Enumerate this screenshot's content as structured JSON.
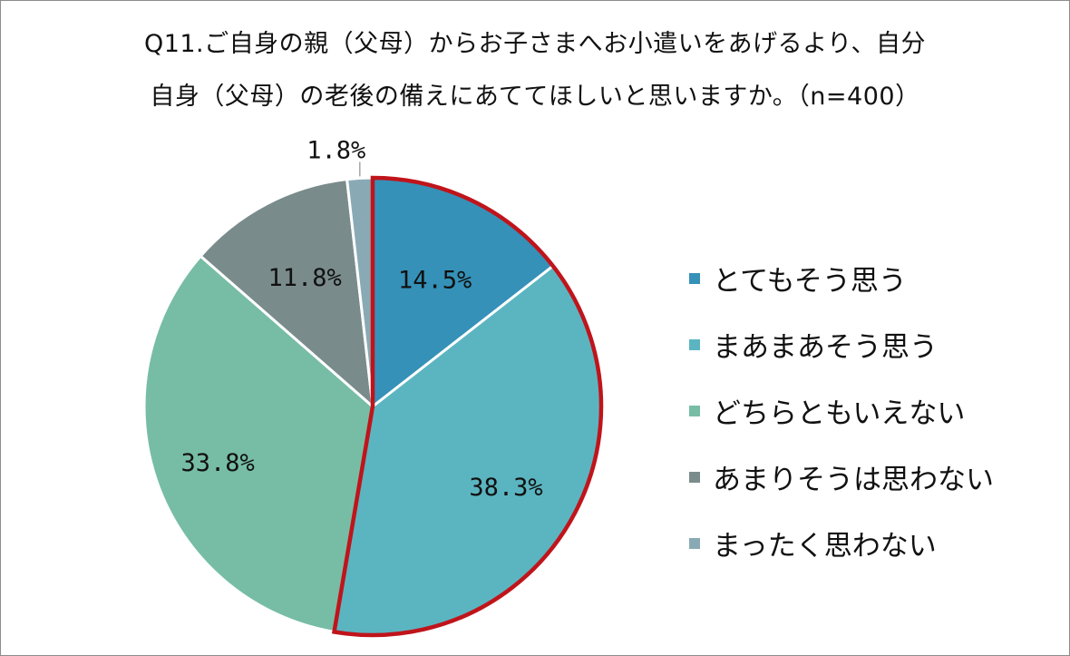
{
  "title_line1": "Q11.ご自身の親（父母）からお子さまへお小遣いをあげるより、自分",
  "title_line2": "自身（父母）の老後の備えにあててほしいと思いますか。（n=400）",
  "chart_data": {
    "type": "pie",
    "categories": [
      "とてもそう思う",
      "まあまあそう思う",
      "どちらともいえない",
      "あまりそうは思わない",
      "まったく思わない"
    ],
    "values": [
      14.5,
      38.3,
      33.8,
      11.8,
      1.8
    ],
    "data_labels": [
      "14.5%",
      "38.3%",
      "33.8%",
      "11.8%",
      "1.8%"
    ],
    "colors": [
      "#3591b8",
      "#5bb5c1",
      "#77bda5",
      "#7a8b8c",
      "#89aab5"
    ],
    "highlight_color": "#c0141b",
    "highlighted_slices": [
      0,
      1
    ],
    "legend_position": "right"
  }
}
